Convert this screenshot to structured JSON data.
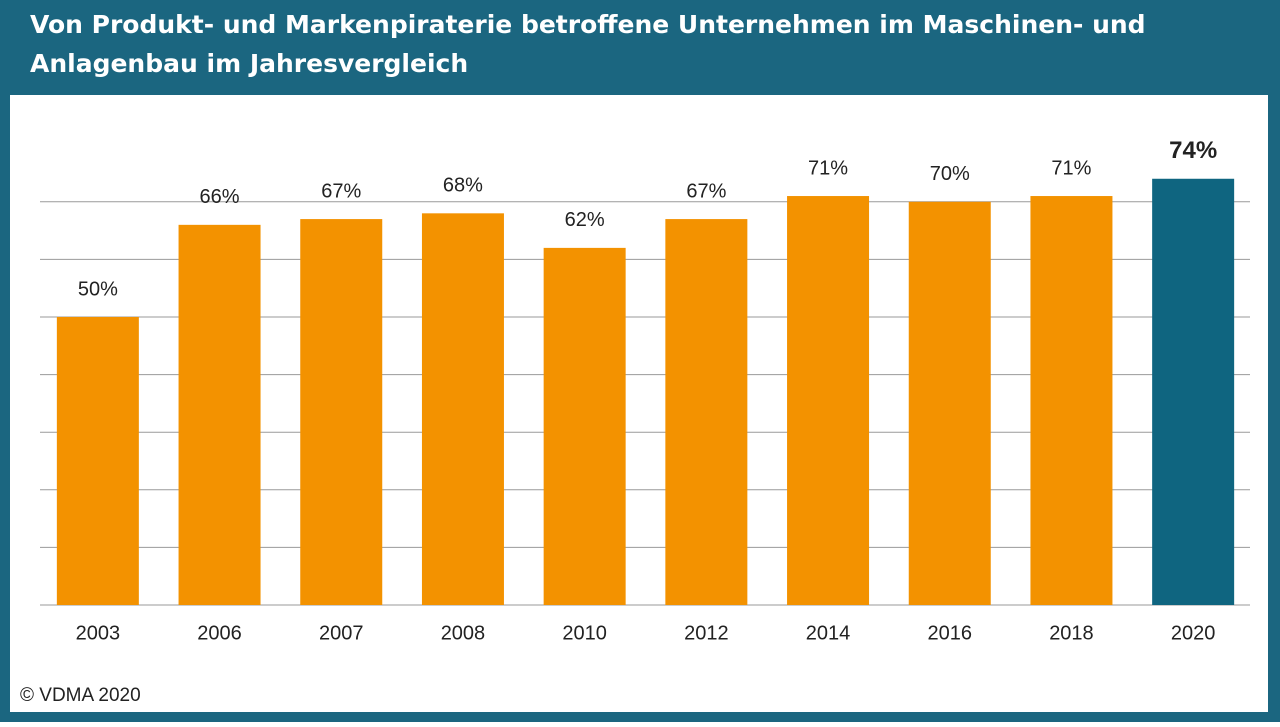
{
  "chart_data": {
    "type": "bar",
    "title": [
      "Von Produkt- und Markenpiraterie betroffene Unternehmen im Maschinen- und",
      "Anlagenbau im Jahresvergleich"
    ],
    "categories": [
      "2003",
      "2006",
      "2007",
      "2008",
      "2010",
      "2012",
      "2014",
      "2016",
      "2018",
      "2020"
    ],
    "values": [
      50,
      66,
      67,
      68,
      62,
      67,
      71,
      70,
      71,
      74
    ],
    "value_labels": [
      "50%",
      "66%",
      "67%",
      "68%",
      "62%",
      "67%",
      "71%",
      "70%",
      "71%",
      "74%"
    ],
    "colors": [
      "#f39200",
      "#f39200",
      "#f39200",
      "#f39200",
      "#f39200",
      "#f39200",
      "#f39200",
      "#f39200",
      "#f39200",
      "#0f6580"
    ],
    "ylim": [
      0,
      80
    ],
    "yticks": [
      0,
      10,
      20,
      30,
      40,
      50,
      60,
      70
    ],
    "grid": true,
    "source": "© VDMA 2020"
  }
}
